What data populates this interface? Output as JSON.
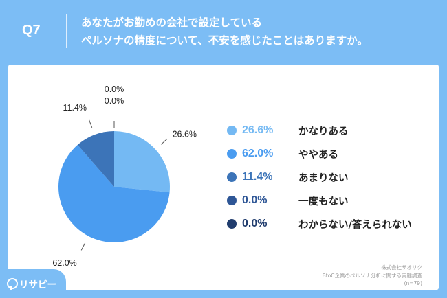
{
  "header": {
    "question_number": "Q7",
    "question_line1": "あなたがお勤めの会社で設定している",
    "question_line2": "ペルソナの精度について、不安を感じたことはありますか。"
  },
  "chart_data": {
    "type": "pie",
    "categories": [
      "かなりある",
      "ややある",
      "あまりない",
      "一度もない",
      "わからない/答えられない"
    ],
    "values": [
      26.6,
      62.0,
      11.4,
      0.0,
      0.0
    ],
    "value_labels": [
      "26.6%",
      "62.0%",
      "11.4%",
      "0.0%",
      "0.0%"
    ],
    "colors": [
      "#74b9f3",
      "#4a9cf0",
      "#3c74b8",
      "#2e5696",
      "#213d6e"
    ],
    "start_angle_deg": 0,
    "direction": "clockwise",
    "legend_position": "right"
  },
  "source": {
    "line1": "株式会社ザオリク",
    "line2": "BtoC企業のペルソナ分析に関する実態調査",
    "line3": "(n=79)"
  },
  "logo": {
    "text": "リサピー",
    "icon": "pin-icon"
  }
}
